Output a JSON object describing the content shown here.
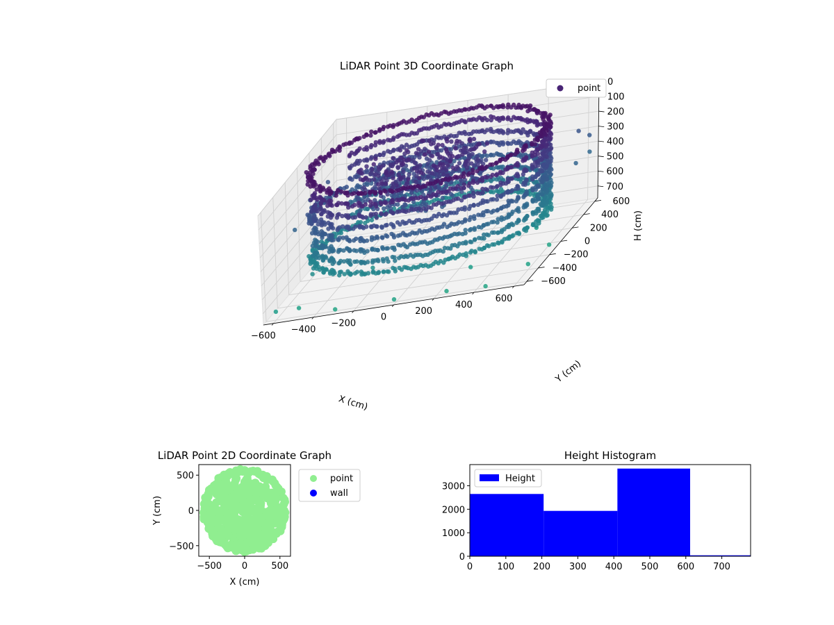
{
  "charts": [
    {
      "type": "scatter",
      "title": "LiDAR Point 3D Coordinate Graph",
      "xlabel": "X (cm)",
      "ylabel": "Y (cm)",
      "zlabel": "H (cm)",
      "x_ticks": [
        "−600",
        "−400",
        "−200",
        "0",
        "200",
        "400",
        "600"
      ],
      "y_ticks": [
        "−600",
        "−400",
        "−200",
        "0",
        "200",
        "400",
        "600"
      ],
      "z_ticks": [
        "0",
        "100",
        "200",
        "300",
        "400",
        "500",
        "600",
        "700"
      ],
      "xlim": [
        -650,
        650
      ],
      "ylim": [
        -650,
        650
      ],
      "zlim": [
        0,
        780
      ],
      "z_inverted": true,
      "grid": true,
      "legend": {
        "position": "top-right",
        "entries": [
          {
            "label": "point",
            "color": "#482475"
          }
        ]
      },
      "colormap": "viridis",
      "ring_radius_cm": 570,
      "ring_height_range_cm": [
        0,
        600
      ],
      "cluster_center_cm": [
        -50,
        60
      ],
      "cluster_radius_cm": 320
    },
    {
      "type": "scatter",
      "title": "LiDAR Point 2D Coordinate Graph",
      "xlabel": "X (cm)",
      "ylabel": "Y (cm)",
      "x_ticks": [
        "−500",
        "0",
        "500"
      ],
      "y_ticks": [
        "−500",
        "0",
        "500"
      ],
      "xlim": [
        -650,
        650
      ],
      "ylim": [
        -650,
        650
      ],
      "grid": false,
      "legend": {
        "position": "outside-right",
        "entries": [
          {
            "label": "point",
            "color": "#90ee90"
          },
          {
            "label": "wall",
            "color": "#0000ff"
          }
        ]
      }
    },
    {
      "type": "bar",
      "title": "Height Histogram",
      "x_ticks": [
        "0",
        "100",
        "200",
        "300",
        "400",
        "500",
        "600",
        "700"
      ],
      "y_ticks": [
        "0",
        "1000",
        "2000",
        "3000"
      ],
      "xlim": [
        0,
        780
      ],
      "ylim": [
        0,
        3900
      ],
      "bins": [
        {
          "x0": 0,
          "x1": 205,
          "count": 2650
        },
        {
          "x0": 205,
          "x1": 410,
          "count": 1930
        },
        {
          "x0": 410,
          "x1": 612,
          "count": 3730
        },
        {
          "x0": 612,
          "x1": 780,
          "count": 40
        }
      ],
      "bar_color": "#0000ff",
      "legend": {
        "position": "top-left",
        "entries": [
          {
            "label": "Height",
            "color": "#0000ff"
          }
        ]
      }
    }
  ]
}
